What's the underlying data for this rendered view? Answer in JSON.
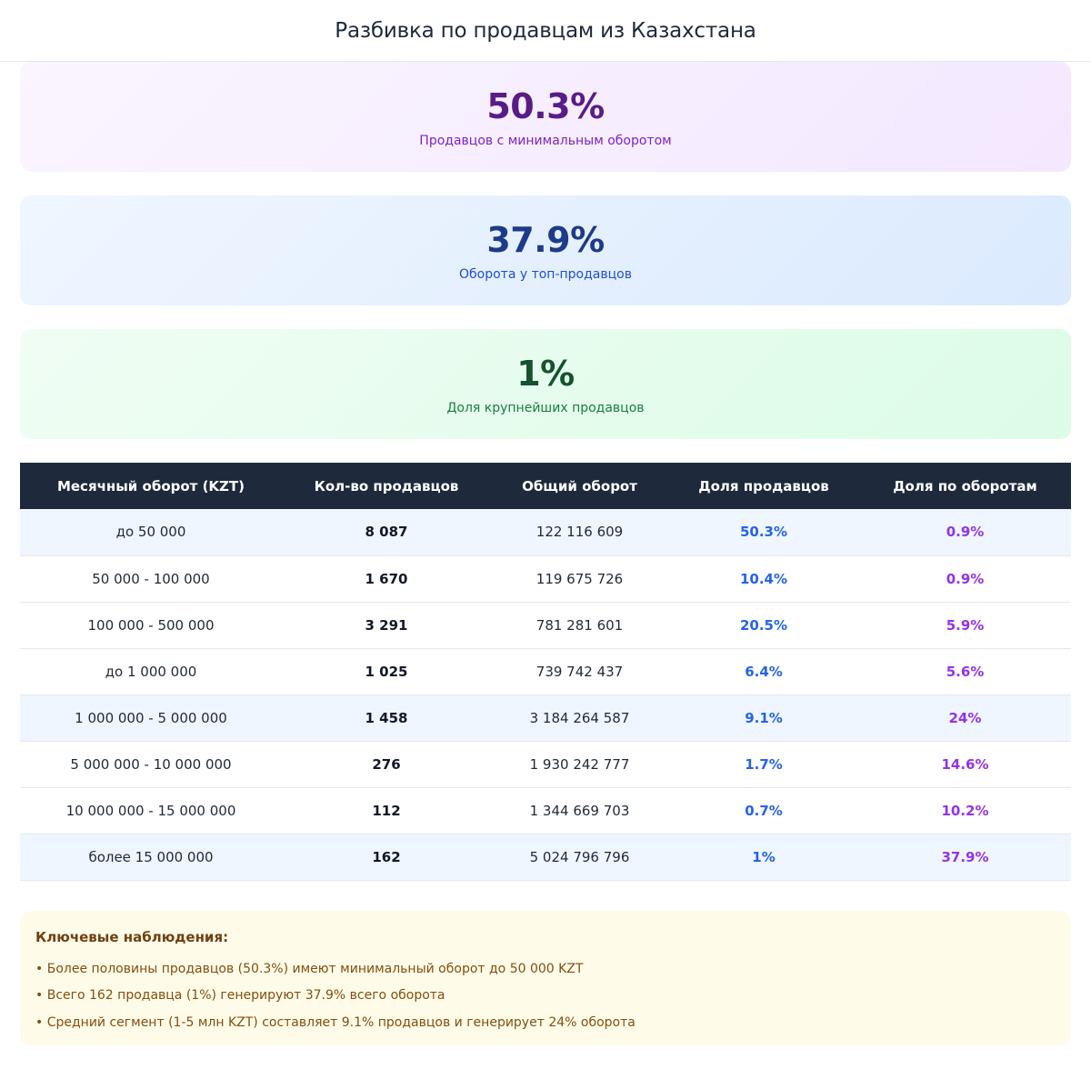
{
  "page": {
    "title": "Разбивка по продавцам из Казахстана"
  },
  "stats": [
    {
      "value": "50.3%",
      "label": "Продавцов с минимальным оборотом",
      "theme": "purple"
    },
    {
      "value": "37.9%",
      "label": "Оборота у топ-продавцов",
      "theme": "blue"
    },
    {
      "value": "1%",
      "label": "Доля крупнейших продавцов",
      "theme": "green"
    }
  ],
  "table": {
    "headers": [
      "Месячный оборот (KZT)",
      "Кол-во продавцов",
      "Общий оборот",
      "Доля продавцов",
      "Доля по оборотам"
    ],
    "rows": [
      {
        "range": "до 50 000",
        "count": "8 087",
        "turnover": "122 116 609",
        "seller_share": "50.3%",
        "turnover_share": "0.9%",
        "highlight": true
      },
      {
        "range": "50 000 - 100 000",
        "count": "1 670",
        "turnover": "119 675 726",
        "seller_share": "10.4%",
        "turnover_share": "0.9%",
        "highlight": false
      },
      {
        "range": "100 000 - 500 000",
        "count": "3 291",
        "turnover": "781 281 601",
        "seller_share": "20.5%",
        "turnover_share": "5.9%",
        "highlight": false
      },
      {
        "range": "до 1 000 000",
        "count": "1 025",
        "turnover": "739 742 437",
        "seller_share": "6.4%",
        "turnover_share": "5.6%",
        "highlight": false
      },
      {
        "range": "1 000 000 - 5 000 000",
        "count": "1 458",
        "turnover": "3 184 264 587",
        "seller_share": "9.1%",
        "turnover_share": "24%",
        "highlight": true
      },
      {
        "range": "5 000 000 - 10 000 000",
        "count": "276",
        "turnover": "1 930 242 777",
        "seller_share": "1.7%",
        "turnover_share": "14.6%",
        "highlight": false
      },
      {
        "range": "10 000 000 - 15 000 000",
        "count": "112",
        "turnover": "1 344 669 703",
        "seller_share": "0.7%",
        "turnover_share": "10.2%",
        "highlight": false
      },
      {
        "range": "более 15 000 000",
        "count": "162",
        "turnover": "5 024 796 796",
        "seller_share": "1%",
        "turnover_share": "37.9%",
        "highlight": true
      }
    ]
  },
  "notes": {
    "title": "Ключевые наблюдения:",
    "items": [
      "• Более половины продавцов (50.3%) имеют минимальный оборот до 50 000 KZT",
      "• Всего 162 продавца (1%) генерируют 37.9% всего оборота",
      "• Средний сегмент (1-5 млн KZT) составляет 9.1% продавцов и генерирует 24% оборота"
    ]
  },
  "colors": {
    "header_bg": "#1e293b",
    "seller_share": "#2563eb",
    "turnover_share": "#9333ea",
    "highlight_row": "#eff6ff",
    "notes_bg": "#fefce8"
  }
}
